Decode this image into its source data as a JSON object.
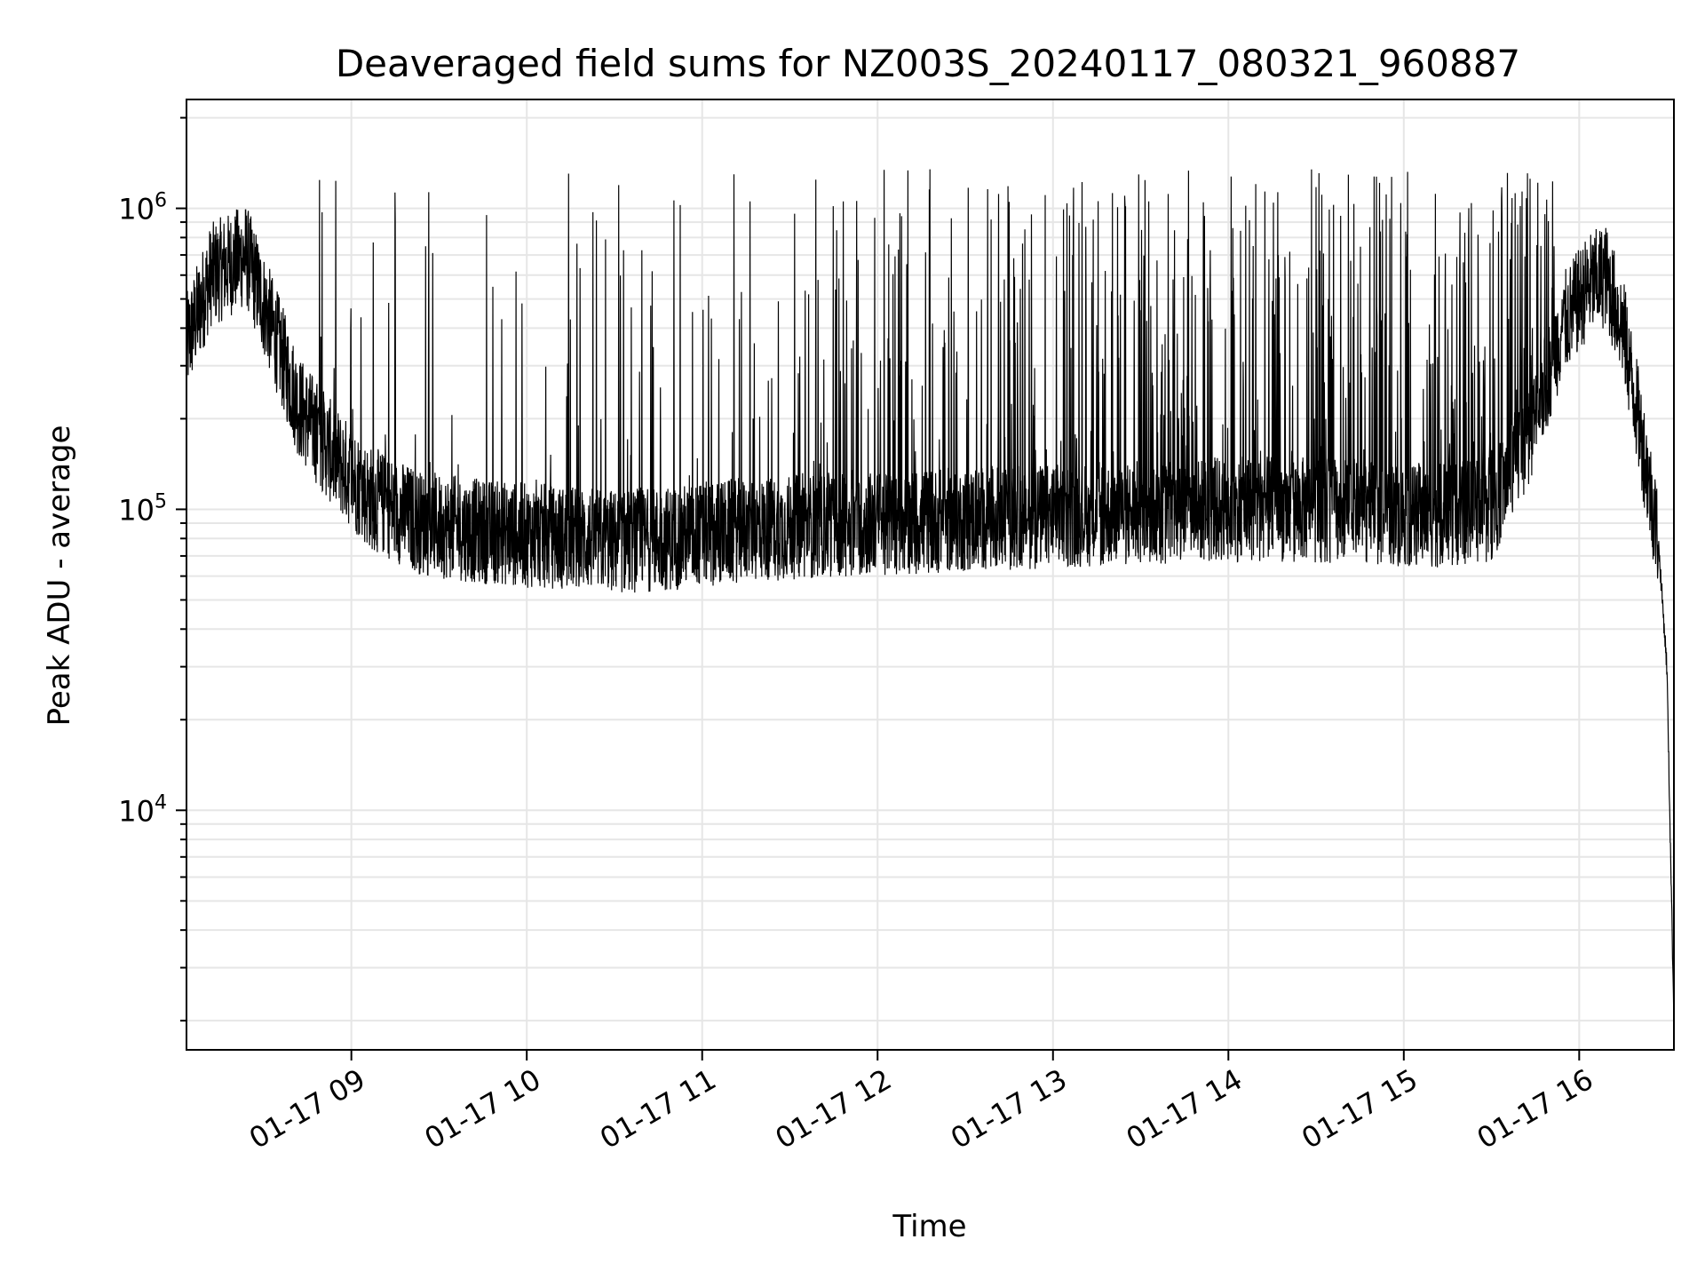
{
  "chart_data": {
    "type": "line",
    "title": "Deaveraged field sums for NZ003S_20240117_080321_960887",
    "xlabel": "Time",
    "ylabel": "Peak ADU - average",
    "yscale": "log",
    "ylim": [
      1600,
      2300000
    ],
    "xlim_hours": [
      8.06,
      16.54
    ],
    "grid": true,
    "line_color": "#000000",
    "grid_color": "#e6e6e6",
    "x_ticks": [
      {
        "hour": 9,
        "label": "01-17 09"
      },
      {
        "hour": 10,
        "label": "01-17 10"
      },
      {
        "hour": 11,
        "label": "01-17 11"
      },
      {
        "hour": 12,
        "label": "01-17 12"
      },
      {
        "hour": 13,
        "label": "01-17 13"
      },
      {
        "hour": 14,
        "label": "01-17 14"
      },
      {
        "hour": 15,
        "label": "01-17 15"
      },
      {
        "hour": 16,
        "label": "01-17 16"
      }
    ],
    "y_ticks": [
      {
        "value": 10000,
        "base": "10",
        "exp": "4"
      },
      {
        "value": 100000,
        "base": "10",
        "exp": "5"
      },
      {
        "value": 1000000,
        "base": "10",
        "exp": "6"
      }
    ],
    "series": [
      {
        "x": [
          8.06,
          8.2,
          8.4,
          8.55,
          8.7,
          8.9,
          9.1,
          9.4,
          9.7,
          10.0,
          10.3,
          10.5,
          10.8,
          11.2,
          11.6,
          12.0,
          12.4,
          12.8,
          13.2,
          13.6,
          14.0,
          14.4,
          14.8,
          15.2,
          15.5,
          15.75,
          15.9,
          16.05,
          16.15,
          16.25,
          16.35,
          16.45,
          16.5,
          16.54
        ],
        "y": [
          350000,
          600000,
          700000,
          400000,
          220000,
          150000,
          110000,
          90000,
          85000,
          82000,
          80000,
          78000,
          80000,
          85000,
          88000,
          90000,
          92000,
          94000,
          96000,
          98000,
          100000,
          100000,
          98000,
          95000,
          100000,
          200000,
          400000,
          550000,
          600000,
          400000,
          180000,
          80000,
          30000,
          2000
        ]
      }
    ]
  }
}
